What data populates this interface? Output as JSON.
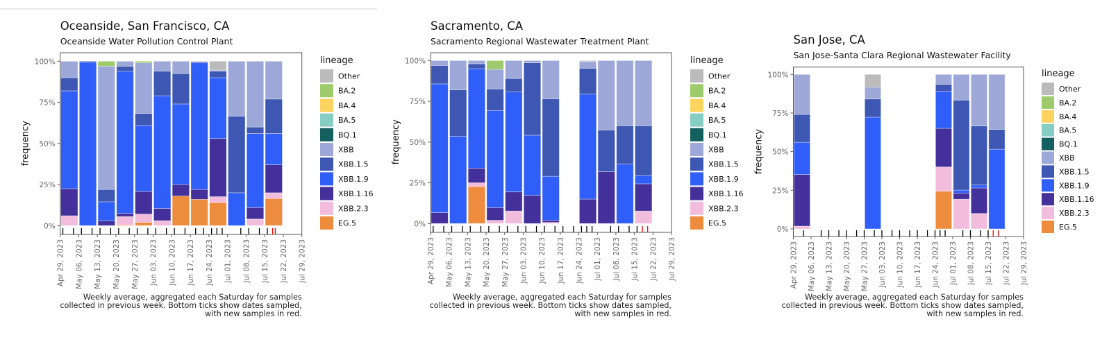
{
  "legend_title": "lineage",
  "lineages": [
    "Other",
    "BA.2",
    "BA.4",
    "BA.5",
    "BQ.1",
    "XBB",
    "XBB.1.5",
    "XBB.1.9",
    "XBB.1.16",
    "XBB.2.3",
    "EG.5"
  ],
  "colors": {
    "Other": "#bbbbbb",
    "BA.2": "#9dca6b",
    "BA.4": "#fdd35f",
    "BA.5": "#86cdc3",
    "BQ.1": "#145f5f",
    "XBB": "#9ea8d8",
    "XBB.1.5": "#3d57b3",
    "XBB.1.9": "#2f5ef8",
    "XBB.1.16": "#43309a",
    "XBB.2.3": "#f2bddc",
    "EG.5": "#ee8c3e",
    "new_sample": "#ff0000",
    "sample": "#000000"
  },
  "caption": [
    "Weekly average, aggregated each Saturday for samples",
    "collected in previous week. Bottom ticks show dates sampled,",
    "with new samples in red."
  ],
  "chart_data": [
    {
      "type": "bar",
      "stacked": true,
      "title": "Oceanside, San Francisco, CA",
      "subtitle": "Oceanside Water Pollution Control Plant",
      "ylabel": "frequency",
      "xlabel": "",
      "ylim": [
        0,
        100
      ],
      "yticks": [
        "0%",
        "25%",
        "50%",
        "75%",
        "100%"
      ],
      "xlim": [
        "2023-04-29",
        "2023-07-29"
      ],
      "xticks": [
        "Apr 29, 2023",
        "May 06, 2023",
        "May 13, 2023",
        "May 20, 2023",
        "May 27, 2023",
        "Jun 03, 2023",
        "Jun 10, 2023",
        "Jun 17, 2023",
        "Jun 24, 2023",
        "Jul 01, 2023",
        "Jul 08, 2023",
        "Jul 15, 2023",
        "Jul 22, 2023",
        "Jul 29, 2023"
      ],
      "legend": "right",
      "x": [
        "2023-04-29",
        "2023-05-06",
        "2023-05-13",
        "2023-05-20",
        "2023-05-27",
        "2023-06-03",
        "2023-06-10",
        "2023-06-17",
        "2023-06-24",
        "2023-07-01",
        "2023-07-08",
        "2023-07-15"
      ],
      "series": [
        {
          "name": "EG.5",
          "values": [
            0,
            0,
            0,
            0.5,
            2,
            0,
            18,
            16,
            14,
            0,
            0,
            16.5
          ]
        },
        {
          "name": "XBB.2.3",
          "values": [
            6,
            0,
            0,
            5,
            5,
            3,
            0,
            0,
            3.6,
            0,
            4,
            3.5
          ]
        },
        {
          "name": "XBB.1.16",
          "values": [
            16.5,
            0,
            3,
            2,
            13.8,
            7.5,
            7,
            6,
            35.4,
            0,
            7,
            17
          ]
        },
        {
          "name": "XBB.1.9",
          "values": [
            59.5,
            99.5,
            11.5,
            86.5,
            40.2,
            68.5,
            49,
            77,
            37,
            20,
            45,
            19
          ]
        },
        {
          "name": "XBB.1.5",
          "values": [
            8,
            0.5,
            7.5,
            3,
            7.3,
            15,
            18.5,
            0.7,
            4,
            46.6,
            4,
            21
          ]
        },
        {
          "name": "XBB",
          "values": [
            10,
            0,
            75,
            3,
            30.7,
            6,
            7.5,
            0.3,
            0.6,
            33.4,
            40,
            23
          ]
        },
        {
          "name": "BQ.1",
          "values": [
            0,
            0,
            0,
            0,
            0,
            0,
            0,
            0,
            0,
            0,
            0,
            0
          ]
        },
        {
          "name": "BA.5",
          "values": [
            0,
            0,
            0,
            0,
            0,
            0,
            0,
            0,
            0,
            0,
            0,
            0
          ]
        },
        {
          "name": "BA.4",
          "values": [
            0,
            0,
            0,
            0,
            0,
            0,
            0,
            0,
            0,
            0,
            0,
            0
          ]
        },
        {
          "name": "BA.2",
          "values": [
            0,
            0,
            3,
            0,
            1,
            0,
            0,
            0,
            0,
            0,
            0,
            0
          ]
        },
        {
          "name": "Other",
          "values": [
            0,
            0,
            0,
            0,
            0,
            0,
            0,
            0,
            5.4,
            0,
            0,
            0
          ]
        }
      ],
      "sample_dates": [
        "2023-04-30",
        "2023-05-04",
        "2023-05-07",
        "2023-05-11",
        "2023-05-14",
        "2023-05-18",
        "2023-05-21",
        "2023-05-25",
        "2023-05-28",
        "2023-06-01",
        "2023-06-04",
        "2023-06-08",
        "2023-06-11",
        "2023-06-15",
        "2023-06-19",
        "2023-06-22",
        "2023-06-25",
        "2023-06-27",
        "2023-06-29",
        "2023-07-06",
        "2023-07-09",
        "2023-07-13",
        "2023-07-16"
      ],
      "new_sample_dates": [
        "2023-07-18",
        "2023-07-19"
      ]
    },
    {
      "type": "bar",
      "stacked": true,
      "title": "Sacramento, CA",
      "subtitle": "Sacramento Regional Wastewater Treatment Plant",
      "ylabel": "frequency",
      "xlabel": "",
      "ylim": [
        0,
        100
      ],
      "yticks": [
        "0%",
        "25%",
        "50%",
        "75%",
        "100%"
      ],
      "xlim": [
        "2023-04-29",
        "2023-07-29"
      ],
      "xticks": [
        "Apr 29, 2023",
        "May 06, 2023",
        "May 13, 2023",
        "May 20, 2023",
        "May 27, 2023",
        "Jun 03, 2023",
        "Jun 10, 2023",
        "Jun 17, 2023",
        "Jun 24, 2023",
        "Jul 01, 2023",
        "Jul 08, 2023",
        "Jul 15, 2023",
        "Jul 22, 2023",
        "Jul 29, 2023"
      ],
      "legend": "right",
      "x": [
        "2023-04-29",
        "2023-05-06",
        "2023-05-13",
        "2023-05-20",
        "2023-05-27",
        "2023-06-03",
        "2023-06-10",
        "2023-06-24",
        "2023-07-01",
        "2023-07-08",
        "2023-07-15"
      ],
      "series": [
        {
          "name": "EG.5",
          "values": [
            0,
            0,
            22.7,
            0,
            0,
            0,
            0,
            0,
            0,
            0,
            0
          ]
        },
        {
          "name": "XBB.2.3",
          "values": [
            0,
            0,
            2.3,
            2,
            7.7,
            0,
            0.7,
            0,
            0,
            0,
            7.7
          ]
        },
        {
          "name": "XBB.1.16",
          "values": [
            6.7,
            0,
            9,
            7.8,
            11.7,
            17.3,
            1.4,
            15,
            31.8,
            0,
            16.7
          ]
        },
        {
          "name": "XBB.1.9",
          "values": [
            79,
            53.5,
            61,
            59.6,
            61.3,
            36.9,
            26.9,
            64.4,
            0,
            36.5,
            5
          ]
        },
        {
          "name": "XBB.1.5",
          "values": [
            11.3,
            28.5,
            3,
            13.2,
            8.3,
            44.4,
            47.5,
            15.9,
            25.6,
            23.5,
            30.6
          ]
        },
        {
          "name": "XBB",
          "values": [
            3,
            18,
            2,
            12,
            11,
            1.4,
            23.5,
            4.1,
            42.6,
            40,
            40
          ]
        },
        {
          "name": "BQ.1",
          "values": [
            0,
            0,
            0,
            0,
            0,
            0,
            0,
            0,
            0,
            0,
            0
          ]
        },
        {
          "name": "BA.5",
          "values": [
            0,
            0,
            0,
            0,
            0,
            0,
            0,
            0,
            0,
            0,
            0
          ]
        },
        {
          "name": "BA.4",
          "values": [
            0,
            0,
            0,
            0,
            0,
            0,
            0,
            0,
            0,
            0,
            0
          ]
        },
        {
          "name": "BA.2",
          "values": [
            0,
            0,
            0,
            5.4,
            0,
            0,
            0,
            0,
            0,
            0,
            0
          ]
        },
        {
          "name": "Other",
          "values": [
            0,
            0,
            0,
            0,
            0,
            0,
            0,
            0.6,
            0,
            0,
            0
          ]
        }
      ],
      "sample_dates": [
        "2023-04-30",
        "2023-05-04",
        "2023-05-07",
        "2023-05-11",
        "2023-05-14",
        "2023-05-18",
        "2023-05-21",
        "2023-05-25",
        "2023-05-28",
        "2023-06-01",
        "2023-06-04",
        "2023-06-08",
        "2023-06-11",
        "2023-06-15",
        "2023-06-18",
        "2023-06-22",
        "2023-06-25",
        "2023-06-27",
        "2023-06-29",
        "2023-07-06",
        "2023-07-09",
        "2023-07-13",
        "2023-07-16"
      ],
      "new_sample_dates": [
        "2023-07-18",
        "2023-07-20"
      ]
    },
    {
      "type": "bar",
      "stacked": true,
      "title": "San Jose, CA",
      "subtitle": "San Jose-Santa Clara Regional Wastewater Facility",
      "ylabel": "frequency",
      "xlabel": "",
      "ylim": [
        0,
        100
      ],
      "yticks": [
        "0%",
        "25%",
        "50%",
        "75%",
        "100%"
      ],
      "xlim": [
        "2023-04-29",
        "2023-07-29"
      ],
      "xticks": [
        "Apr 29, 2023",
        "May 06, 2023",
        "May 13, 2023",
        "May 20, 2023",
        "May 27, 2023",
        "Jun 03, 2023",
        "Jun 10, 2023",
        "Jun 17, 2023",
        "Jun 24, 2023",
        "Jul 01, 2023",
        "Jul 08, 2023",
        "Jul 15, 2023",
        "Jul 22, 2023",
        "Jul 29, 2023"
      ],
      "legend": "right",
      "x": [
        "2023-04-29",
        "2023-05-27",
        "2023-06-24",
        "2023-07-01",
        "2023-07-08",
        "2023-07-15"
      ],
      "series": [
        {
          "name": "EG.5",
          "values": [
            0,
            0,
            24.4,
            0,
            0,
            0
          ]
        },
        {
          "name": "XBB.2.3",
          "values": [
            1.8,
            0,
            15.7,
            19.2,
            10,
            0
          ]
        },
        {
          "name": "XBB.1.16",
          "values": [
            33.4,
            0,
            25,
            4,
            16.5,
            0
          ]
        },
        {
          "name": "XBB.1.9",
          "values": [
            20.9,
            72.3,
            24,
            1.9,
            1.9,
            51.6
          ]
        },
        {
          "name": "XBB.1.5",
          "values": [
            18,
            11.8,
            4.5,
            58.3,
            38.2,
            12.8
          ]
        },
        {
          "name": "XBB",
          "values": [
            25.9,
            7.7,
            6.4,
            16.6,
            33.4,
            35.6
          ]
        },
        {
          "name": "BQ.1",
          "values": [
            0,
            0,
            0,
            0,
            0,
            0
          ]
        },
        {
          "name": "BA.5",
          "values": [
            0,
            0,
            0,
            0,
            0,
            0
          ]
        },
        {
          "name": "BA.4",
          "values": [
            0,
            0,
            0,
            0,
            0,
            0
          ]
        },
        {
          "name": "BA.2",
          "values": [
            0,
            0,
            0,
            0,
            0,
            0
          ]
        },
        {
          "name": "Other",
          "values": [
            0,
            8.2,
            0,
            0,
            0,
            0
          ]
        }
      ],
      "sample_dates": [
        "2023-05-03",
        "2023-05-10",
        "2023-05-13",
        "2023-05-17",
        "2023-05-20",
        "2023-05-24",
        "2023-05-27",
        "2023-05-31",
        "2023-06-03",
        "2023-06-07",
        "2023-06-10",
        "2023-06-14",
        "2023-06-17",
        "2023-06-21",
        "2023-06-24",
        "2023-06-26",
        "2023-06-28",
        "2023-07-05",
        "2023-07-08",
        "2023-07-12",
        "2023-07-15"
      ],
      "new_sample_dates": [
        "2023-07-17",
        "2023-07-19"
      ]
    }
  ]
}
